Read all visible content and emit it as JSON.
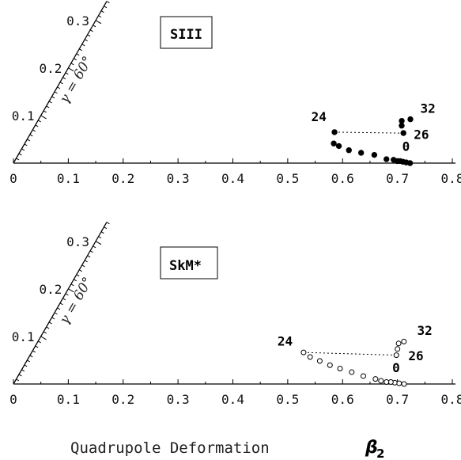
{
  "chart_data": [
    {
      "type": "scatter",
      "title": "SIII",
      "gamma_label": "γ = 60°",
      "x_ticks": [
        "0",
        "0.1",
        "0.2",
        "0.3",
        "0.4",
        "0.5",
        "0.6",
        "0.7",
        "0.8"
      ],
      "radial_ticks": [
        "0.1",
        "0.2",
        "0.3"
      ],
      "marker": "filled-circle",
      "xlim": [
        0,
        0.8
      ],
      "series": [
        {
          "points": [
            {
              "beta": 0.723,
              "gamma_deg": 0.0
            },
            {
              "beta": 0.716,
              "gamma_deg": 0.1
            },
            {
              "beta": 0.71,
              "gamma_deg": 0.2
            },
            {
              "beta": 0.705,
              "gamma_deg": 0.3
            },
            {
              "beta": 0.7,
              "gamma_deg": 0.3
            },
            {
              "beta": 0.693,
              "gamma_deg": 0.5
            },
            {
              "beta": 0.68,
              "gamma_deg": 0.6
            },
            {
              "beta": 0.658,
              "gamma_deg": 1.3
            },
            {
              "beta": 0.634,
              "gamma_deg": 1.7
            },
            {
              "beta": 0.612,
              "gamma_deg": 2.2
            },
            {
              "beta": 0.594,
              "gamma_deg": 3.0
            },
            {
              "beta": 0.585,
              "gamma_deg": 3.5
            },
            {
              "beta": 0.588,
              "gamma_deg": 5.5
            },
            {
              "beta": 0.713,
              "gamma_deg": 4.4
            },
            {
              "beta": 0.711,
              "gamma_deg": 5.5
            },
            {
              "beta": 0.712,
              "gamma_deg": 6.2
            },
            {
              "beta": 0.728,
              "gamma_deg": 6.3
            }
          ]
        }
      ],
      "labels": [
        {
          "text": "0",
          "beta": 0.716,
          "gamma_deg": 1.8
        },
        {
          "text": "24",
          "beta": 0.562,
          "gamma_deg": 7.8
        },
        {
          "text": "26",
          "beta": 0.745,
          "gamma_deg": 3.4
        },
        {
          "text": "32",
          "beta": 0.761,
          "gamma_deg": 6.9
        }
      ],
      "dotted_line": [
        {
          "beta": 0.588,
          "gamma_deg": 5.5
        },
        {
          "beta": 0.711,
          "gamma_deg": 4.4
        }
      ]
    },
    {
      "type": "scatter",
      "title": "SkM*",
      "gamma_label": "γ = 60°",
      "x_ticks": [
        "0",
        "0.1",
        "0.2",
        "0.3",
        "0.4",
        "0.5",
        "0.6",
        "0.7",
        "0.8"
      ],
      "radial_ticks": [
        "0.1",
        "0.2",
        "0.3"
      ],
      "marker": "open-circle",
      "xlim": [
        0,
        0.8
      ],
      "series": [
        {
          "points": [
            {
              "beta": 0.712,
              "gamma_deg": 0.0
            },
            {
              "beta": 0.703,
              "gamma_deg": 0.1
            },
            {
              "beta": 0.695,
              "gamma_deg": 0.2
            },
            {
              "beta": 0.688,
              "gamma_deg": 0.3
            },
            {
              "beta": 0.68,
              "gamma_deg": 0.3
            },
            {
              "beta": 0.67,
              "gamma_deg": 0.5
            },
            {
              "beta": 0.66,
              "gamma_deg": 0.8
            },
            {
              "beta": 0.638,
              "gamma_deg": 1.3
            },
            {
              "beta": 0.617,
              "gamma_deg": 2.0
            },
            {
              "beta": 0.596,
              "gamma_deg": 2.7
            },
            {
              "beta": 0.578,
              "gamma_deg": 3.4
            },
            {
              "beta": 0.56,
              "gamma_deg": 4.3
            },
            {
              "beta": 0.543,
              "gamma_deg": 5.2
            },
            {
              "beta": 0.532,
              "gamma_deg": 6.2
            },
            {
              "beta": 0.7,
              "gamma_deg": 4.3
            },
            {
              "beta": 0.703,
              "gamma_deg": 5.2
            },
            {
              "beta": 0.706,
              "gamma_deg": 6.0
            },
            {
              "beta": 0.716,
              "gamma_deg": 6.2
            }
          ]
        }
      ],
      "labels": [
        {
          "text": "0",
          "beta": 0.698,
          "gamma_deg": 1.8
        },
        {
          "text": "24",
          "beta": 0.5,
          "gamma_deg": 8.0
        },
        {
          "text": "26",
          "beta": 0.735,
          "gamma_deg": 3.4
        },
        {
          "text": "32",
          "beta": 0.755,
          "gamma_deg": 6.8
        }
      ],
      "dotted_line": [
        {
          "beta": 0.532,
          "gamma_deg": 6.2
        },
        {
          "beta": 0.7,
          "gamma_deg": 4.3
        }
      ]
    }
  ],
  "xlabel": "Quadrupole Deformation",
  "xlabel_symbol": "β",
  "xlabel_subscript": "2"
}
